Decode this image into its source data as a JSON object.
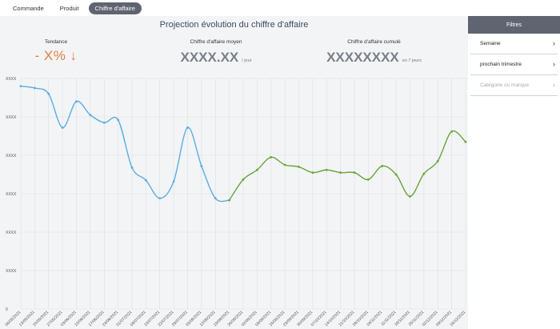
{
  "nav": {
    "tabs": [
      {
        "label": "Commande",
        "active": false
      },
      {
        "label": "Produit",
        "active": false
      },
      {
        "label": "Chiffre d'affaire",
        "active": true
      }
    ]
  },
  "main": {
    "title": "Projection évolution du chiffre d'affaire",
    "kpis": {
      "trend": {
        "label": "Tendance",
        "value": "- X% ↓"
      },
      "average": {
        "label": "Chiffre d'affaire moyen",
        "value": "XXXX.XX",
        "unit": "/ jour"
      },
      "cumulative": {
        "label": "Chiffre d'affaire cumulé",
        "value": "XXXXXXXX",
        "unit": "en 7 jours"
      }
    }
  },
  "sidebar": {
    "header": "Filtres",
    "filters": [
      {
        "label": "Semaine",
        "enabled": true
      },
      {
        "label": "prochain trimestre",
        "enabled": true
      },
      {
        "label": "Catégorie ou marque",
        "enabled": false
      }
    ]
  },
  "colors": {
    "history": "#5aaee0",
    "projection": "#6aa43a",
    "accent": "#e0803c",
    "header": "#5f6470"
  },
  "chart_data": {
    "type": "line",
    "title": "",
    "xlabel": "",
    "ylabel": "",
    "y_ticks": [
      "XXXX",
      "XXXX",
      "XXXX",
      "XXXX",
      "XXXX",
      "XXXX",
      "0"
    ],
    "grid": true,
    "categories": [
      "06/05/2021",
      "13/05/2021",
      "20/05/2021",
      "27/05/2021",
      "03/06/2021",
      "10/06/2021",
      "17/06/2021",
      "24/06/2021",
      "01/07/2021",
      "08/07/2021",
      "15/07/2021",
      "22/07/2021",
      "29/07/2021",
      "05/08/2021",
      "12/08/2021",
      "19/08/2021",
      "26/08/2021",
      "02/09/2021",
      "09/09/2021",
      "16/09/2021",
      "23/09/2021",
      "30/09/2021",
      "07/10/2021",
      "14/10/2021",
      "21/10/2021",
      "28/10/2021",
      "04/11/2021",
      "11/11/2021",
      "18/11/2021",
      "25/11/2021",
      "02/12/2021",
      "09/12/2021",
      "16/12/2021"
    ],
    "series": [
      {
        "values": [
          5.8,
          5.75,
          5.6,
          4.72,
          5.4,
          5.05,
          4.85,
          4.92,
          3.68,
          3.35,
          2.88,
          3.32,
          4.72,
          3.72,
          2.88,
          2.83,
          null,
          null,
          null,
          null,
          null,
          null,
          null,
          null,
          null,
          null,
          null,
          null,
          null,
          null,
          null,
          null,
          null
        ]
      },
      {
        "values": [
          null,
          null,
          null,
          null,
          null,
          null,
          null,
          null,
          null,
          null,
          null,
          null,
          null,
          null,
          null,
          2.83,
          3.37,
          3.62,
          3.95,
          3.75,
          3.7,
          3.55,
          3.62,
          3.55,
          3.55,
          3.37,
          3.72,
          3.5,
          2.93,
          3.52,
          3.85,
          4.62,
          4.35
        ]
      }
    ]
  }
}
